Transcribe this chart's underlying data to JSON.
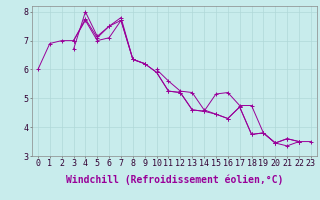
{
  "xlabel": "Windchill (Refroidissement éolien,°C)",
  "background_color": "#c8ecec",
  "grid_color": "#b0d8d8",
  "line_color": "#990099",
  "xlim": [
    -0.5,
    23.5
  ],
  "ylim": [
    3,
    8.2
  ],
  "xticks": [
    0,
    1,
    2,
    3,
    4,
    5,
    6,
    7,
    8,
    9,
    10,
    11,
    12,
    13,
    14,
    15,
    16,
    17,
    18,
    19,
    20,
    21,
    22,
    23
  ],
  "yticks": [
    3,
    4,
    5,
    6,
    7,
    8
  ],
  "series": [
    [
      6.0,
      6.9,
      7.0,
      7.0,
      7.75,
      7.1,
      7.5,
      7.8,
      6.35,
      6.2,
      5.9,
      5.25,
      5.2,
      4.6,
      4.55,
      5.15,
      5.2,
      4.75,
      4.75,
      3.8,
      3.45,
      3.6,
      3.5,
      null
    ],
    [
      null,
      null,
      null,
      7.0,
      7.7,
      7.0,
      7.1,
      7.7,
      6.35,
      6.2,
      null,
      null,
      null,
      null,
      null,
      null,
      null,
      null,
      null,
      null,
      null,
      null,
      null,
      null
    ],
    [
      null,
      null,
      null,
      6.7,
      8.0,
      7.15,
      7.5,
      7.7,
      6.35,
      6.2,
      5.9,
      5.25,
      5.2,
      4.6,
      4.55,
      4.45,
      4.3,
      4.7,
      3.75,
      3.8,
      3.45,
      3.6,
      3.5,
      null
    ],
    [
      null,
      null,
      null,
      null,
      null,
      null,
      null,
      null,
      null,
      null,
      6.0,
      5.6,
      5.25,
      5.2,
      4.6,
      4.45,
      4.3,
      4.7,
      3.75,
      3.8,
      3.45,
      3.35,
      3.5,
      3.5
    ]
  ],
  "tick_fontsize": 6.0,
  "label_fontsize": 7.0
}
